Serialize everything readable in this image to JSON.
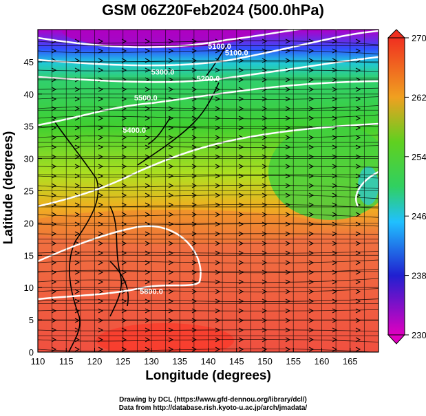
{
  "title": "GSM 06Z20Feb2024 (500.0hPa)",
  "chart_data": {
    "type": "map",
    "xlabel": "Longitude (degrees)",
    "ylabel": "Latitude  (degrees)",
    "xlim": [
      110,
      170
    ],
    "ylim": [
      0,
      50
    ],
    "xticks": [
      110,
      115,
      120,
      125,
      130,
      135,
      140,
      145,
      150,
      155,
      160,
      165
    ],
    "yticks": [
      0,
      5,
      10,
      15,
      20,
      25,
      30,
      35,
      40,
      45
    ],
    "colorbar": {
      "min": 230,
      "max": 270,
      "ticks": [
        230,
        238,
        246,
        254,
        262,
        270
      ]
    },
    "contours": [
      {
        "label": "5100.0",
        "lon": 145,
        "lat": 46
      },
      {
        "label": "5200.0",
        "lon": 140,
        "lat": 42
      },
      {
        "label": "5300.0",
        "lon": 132,
        "lat": 43
      },
      {
        "label": "5400.0",
        "lon": 127,
        "lat": 34
      },
      {
        "label": "5500.0",
        "lon": 129,
        "lat": 39
      },
      {
        "label": "5800.0",
        "lon": 130,
        "lat": 9
      },
      {
        "label": "5100.0",
        "lon": 142,
        "lat": 47
      }
    ]
  },
  "credits": {
    "line1": "Drawing by DCL (https://www.gfd-dennou.org/library/dcl/)",
    "line2": "Data from http://database.rish.kyoto-u.ac.jp/arch/jmadata/"
  }
}
